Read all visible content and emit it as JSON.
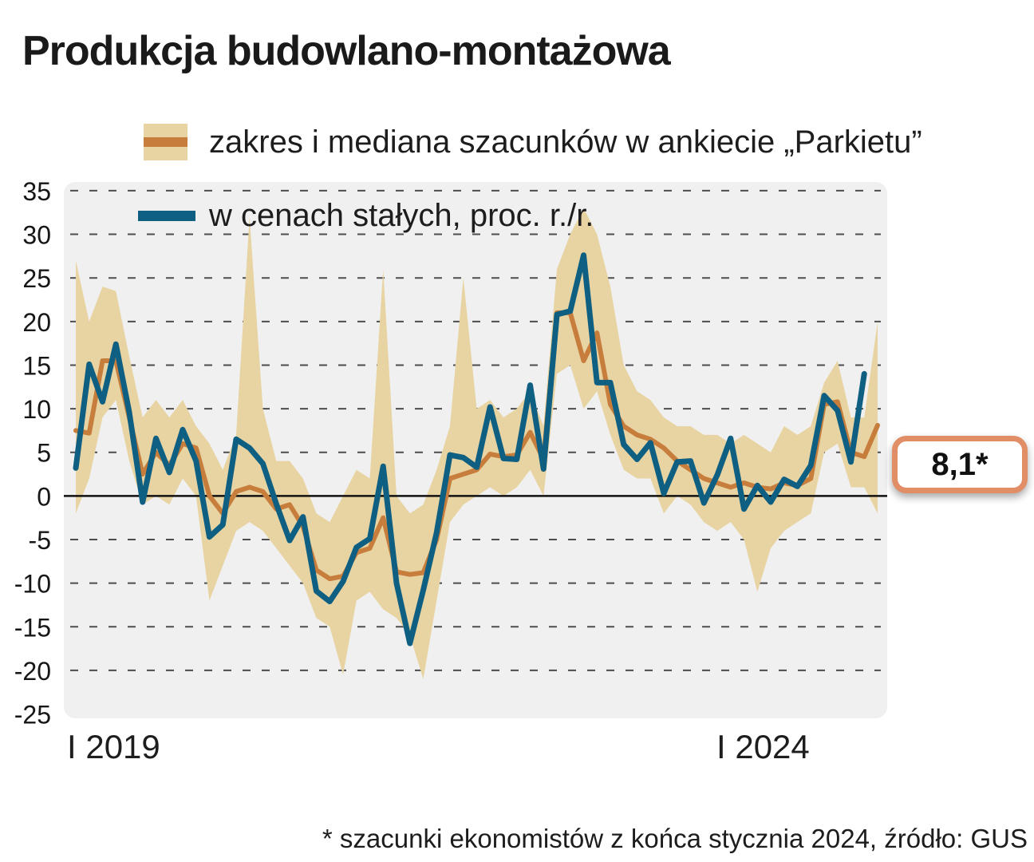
{
  "title": "Produkcja budowlano-montażowa",
  "legend": {
    "range_label": "zakres i mediana szacunków w ankiecie „Parkietu”",
    "actual_label": "w cenach stałych, proc. r./r."
  },
  "callout": {
    "value": "8,1*"
  },
  "footnote": "* szacunki ekonomistów z końca stycznia 2024, źródło: GUS",
  "colors": {
    "band": "#e8d4a2",
    "median": "#c77d3c",
    "actual": "#0e5f81",
    "plot_bg": "#f0f0f0",
    "grid": "#4d4d4d",
    "zero": "#111111",
    "callout_border": "#e18d66"
  },
  "chart_data": {
    "type": "line",
    "title": "Produkcja budowlano-montażowa",
    "ylabel": "proc. r./r.",
    "ylim": [
      -25,
      35
    ],
    "yticks": [
      35,
      30,
      25,
      20,
      15,
      10,
      5,
      0,
      -5,
      -10,
      -15,
      -20,
      -25
    ],
    "xtick_labels": [
      "I 2019",
      "I 2024"
    ],
    "x_range": "styczeń 2019 – styczeń 2024, dane miesięczne",
    "months": 61,
    "grid": "dashed horizontal",
    "legend_position": "top-left",
    "latest_estimate": 8.1,
    "series": [
      {
        "key": "range_low",
        "name": "zakres szacunków w ankiecie „Parkietu” – dolna granica",
        "values": [
          -2,
          2,
          9,
          11,
          4,
          -1,
          0,
          -1,
          2,
          0,
          -12,
          -8,
          -4,
          -3,
          -4,
          -6,
          -8,
          -10,
          -14,
          -15,
          -20.5,
          -12,
          -11,
          -13,
          -14,
          -16,
          -21,
          -12,
          -3,
          -1,
          0,
          1,
          0,
          1,
          3,
          0,
          14,
          15,
          10,
          12,
          7,
          3,
          2,
          2,
          -2,
          0,
          -1,
          -3,
          -4,
          -3,
          -5,
          -11,
          -6,
          -4,
          -3,
          -2,
          5,
          6,
          1,
          1,
          -2
        ]
      },
      {
        "key": "range_high",
        "name": "zakres szacunków w ankiecie „Parkietu” – górna granica",
        "values": [
          27,
          20,
          24,
          23.5,
          16,
          9,
          11,
          9,
          11,
          8,
          6,
          3,
          7,
          32,
          10,
          4,
          4,
          2,
          -2,
          -3,
          0,
          3,
          2,
          26,
          0,
          -2,
          -1,
          3,
          8,
          25,
          10,
          11,
          9,
          10,
          12,
          8,
          26,
          30,
          33,
          30,
          24,
          15,
          12,
          11,
          9,
          8,
          8,
          7,
          7,
          6,
          7,
          6,
          5,
          8,
          7,
          8,
          13,
          15.5,
          9,
          9,
          20
        ]
      },
      {
        "key": "median",
        "name": "mediana szacunków w ankiecie „Parkietu”",
        "values": [
          7.5,
          7.2,
          15.5,
          15.5,
          9,
          2.5,
          5,
          3.5,
          6,
          5.5,
          0,
          -2,
          0.5,
          1,
          0.5,
          -1.5,
          -1,
          -3.5,
          -8.5,
          -9.5,
          -9.2,
          -6.5,
          -6,
          -2.5,
          -8.7,
          -9,
          -8.8,
          -5,
          2,
          2.5,
          3,
          4.8,
          4.5,
          4.7,
          7.3,
          4.2,
          21,
          21,
          15.5,
          18.7,
          10.5,
          8,
          7,
          6.5,
          5.5,
          4,
          3,
          2,
          1.5,
          1,
          1.5,
          1,
          0.8,
          1.5,
          1.2,
          2,
          10.5,
          10.8,
          5,
          4.5,
          8.1
        ]
      },
      {
        "key": "actual",
        "name": "produkcja budowlano-montażowa w cenach stałych, proc. r./r.",
        "values": [
          3.2,
          15.1,
          10.8,
          17.4,
          9.6,
          -0.7,
          6.6,
          2.7,
          7.6,
          4,
          -4.7,
          -3.3,
          6.5,
          5.5,
          3.7,
          -0.9,
          -5.1,
          -2.4,
          -10.9,
          -12.1,
          -9.8,
          -5.9,
          -4.9,
          3.4,
          -10,
          -16.9,
          -10.8,
          -4.2,
          4.7,
          4.4,
          3.3,
          10.2,
          4.3,
          4.2,
          12.7,
          3.1,
          20.8,
          21.2,
          27.6,
          13,
          13,
          5.9,
          4.2,
          6.1,
          0.3,
          3.9,
          4,
          -0.8,
          2.4,
          6.6,
          -1.5,
          1.2,
          -0.7,
          1.9,
          1.1,
          3.5,
          11.5,
          9.8,
          3.9,
          14,
          null
        ]
      }
    ]
  }
}
